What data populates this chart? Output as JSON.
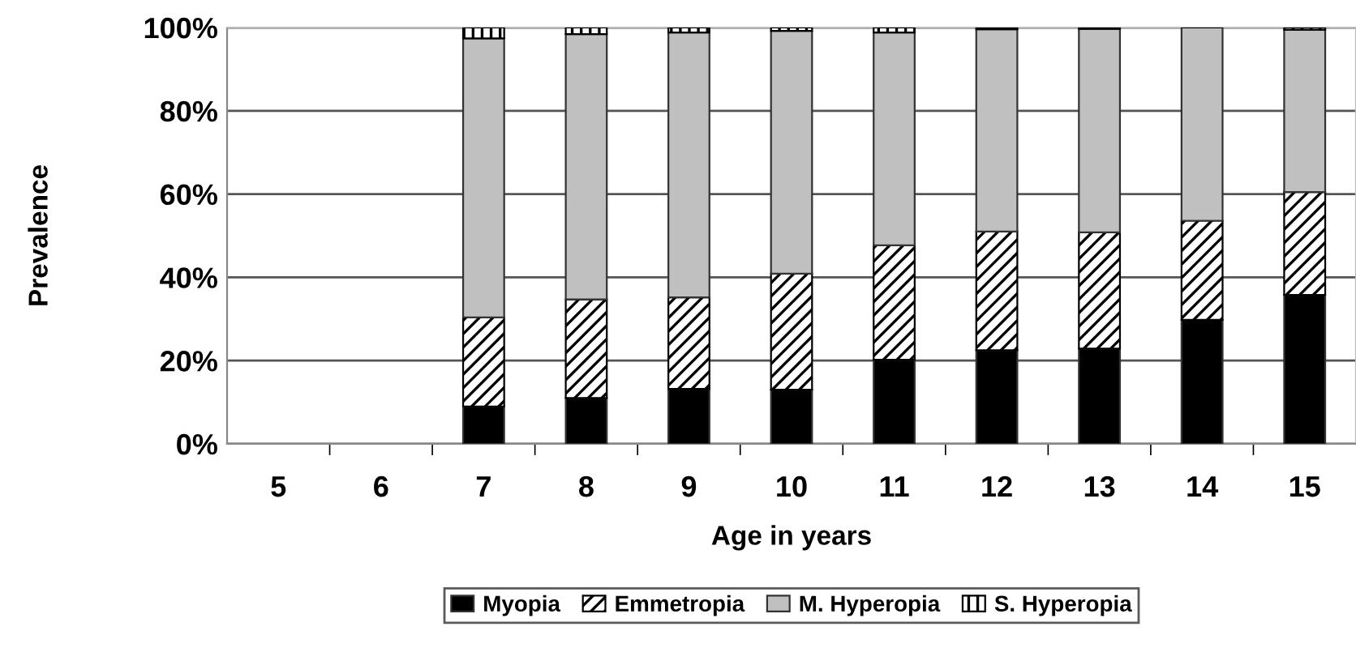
{
  "chart_data": {
    "type": "bar",
    "stacked": true,
    "xlabel": "Age in years",
    "ylabel": "Prevalence",
    "categories": [
      "5",
      "6",
      "7",
      "8",
      "9",
      "10",
      "11",
      "12",
      "13",
      "14",
      "15"
    ],
    "series": [
      {
        "name": "Myopia",
        "color": "#000000",
        "values": [
          null,
          null,
          9,
          11,
          13.2,
          13,
          20.2,
          22.5,
          22.9,
          29.8,
          35.8
        ]
      },
      {
        "name": "Emmetropia",
        "color": "#000000",
        "values": [
          null,
          null,
          21.4,
          23.7,
          22,
          27.9,
          27.5,
          28.5,
          27.9,
          23.8,
          24.7
        ]
      },
      {
        "name": "M. Hyperopia",
        "color": "#c0c0c0",
        "values": [
          null,
          null,
          67,
          63.7,
          63.6,
          58.3,
          51.1,
          48.6,
          48.9,
          46.4,
          39
        ]
      },
      {
        "name": "S. Hyperopia",
        "color": "#000000",
        "values": [
          null,
          null,
          2.6,
          1.6,
          1.2,
          0.8,
          1.2,
          0.4,
          0.3,
          0,
          0.5
        ]
      }
    ],
    "ylim": [
      0,
      100
    ],
    "yticks": [
      {
        "value": 0,
        "label": "0%"
      },
      {
        "value": 20,
        "label": "20%"
      },
      {
        "value": 40,
        "label": "40%"
      },
      {
        "value": 60,
        "label": "60%"
      },
      {
        "value": 80,
        "label": "80%"
      },
      {
        "value": 100,
        "label": "100%"
      }
    ],
    "grid": "y",
    "legend": "bottom"
  }
}
